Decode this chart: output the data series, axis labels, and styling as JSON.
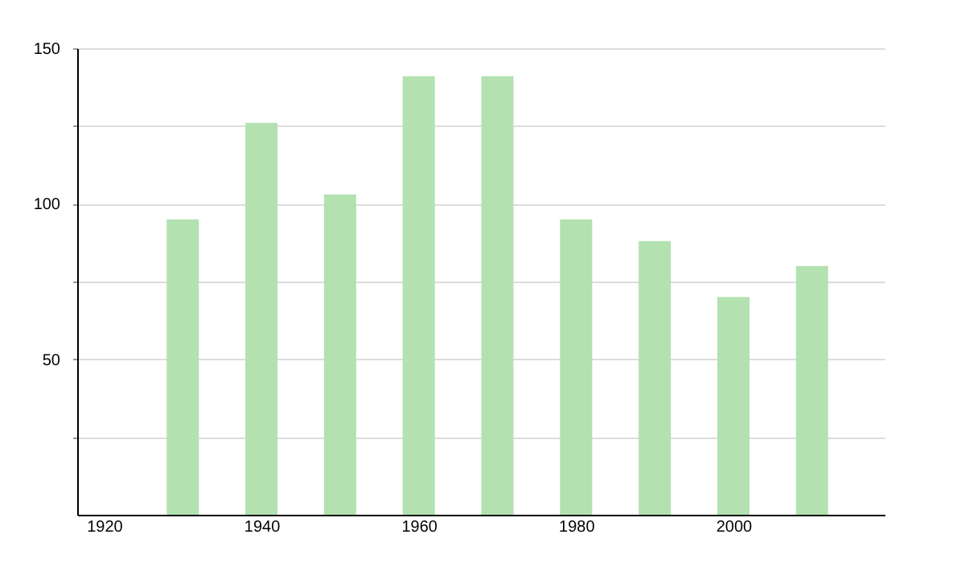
{
  "chart_data": {
    "type": "bar",
    "x": [
      1930,
      1940,
      1950,
      1960,
      1970,
      1980,
      1990,
      2000,
      2010
    ],
    "values": [
      95,
      126,
      103,
      141,
      141,
      95,
      88,
      70,
      80
    ],
    "color": "#b3e2b0",
    "xlim": [
      1917.6,
      2018.2
    ],
    "xticks": [
      1920,
      1940,
      1960,
      1980,
      2000
    ],
    "ylim": [
      0,
      150
    ],
    "yticks": [
      {
        "value": 25,
        "label": null
      },
      50,
      {
        "value": 75,
        "label": null
      },
      100,
      {
        "value": 125,
        "label": null
      },
      150
    ],
    "grid": "y"
  }
}
